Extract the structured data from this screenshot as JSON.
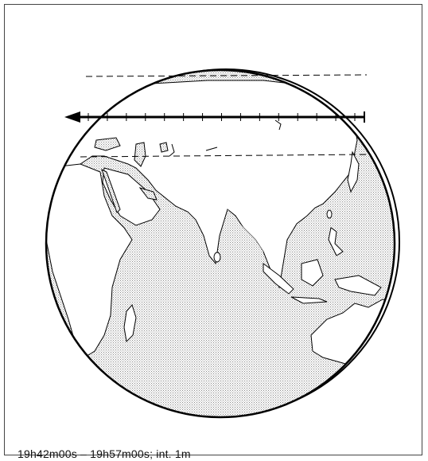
{
  "caption": "19h42m00s – 19h57m00s; int. 1m",
  "path": {
    "direction": "west",
    "tick_count": 15
  },
  "colors": {
    "ink": "#000000",
    "shading": "#8a8a8a",
    "land": "#ffffff",
    "background": "#ffffff"
  }
}
